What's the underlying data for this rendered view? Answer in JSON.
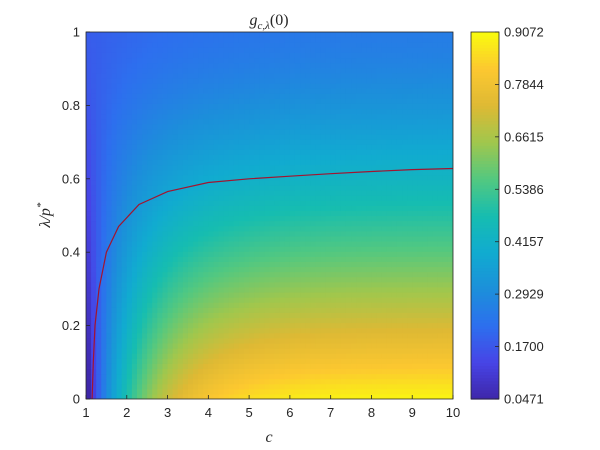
{
  "chart_data": {
    "type": "heatmap",
    "title": "g_{c,λ}(0)",
    "title_parts": {
      "base": "g",
      "sub": "c,λ",
      "arg": "(0)"
    },
    "xlabel": "c",
    "ylabel_parts": {
      "main": "λ/p",
      "sup": "*"
    },
    "xlim": [
      1,
      10
    ],
    "ylim": [
      0,
      1
    ],
    "x_ticks": [
      "1",
      "2",
      "3",
      "4",
      "5",
      "6",
      "7",
      "8",
      "9",
      "10"
    ],
    "y_ticks": [
      "0",
      "0.2",
      "0.4",
      "0.6",
      "0.8",
      "1"
    ],
    "colorbar": {
      "min": 0.0471,
      "max": 0.9072,
      "ticks": [
        "0.0471",
        "0.1700",
        "0.2929",
        "0.4157",
        "0.5386",
        "0.6615",
        "0.7844",
        "0.9072"
      ],
      "colormap": "parula"
    },
    "contour_curve": {
      "color": "#a2142f",
      "points": [
        [
          1.15,
          0.0
        ],
        [
          1.18,
          0.1
        ],
        [
          1.22,
          0.2
        ],
        [
          1.32,
          0.3
        ],
        [
          1.5,
          0.4
        ],
        [
          1.8,
          0.47
        ],
        [
          2.3,
          0.53
        ],
        [
          3.0,
          0.565
        ],
        [
          4.0,
          0.59
        ],
        [
          5.0,
          0.6
        ],
        [
          6.0,
          0.607
        ],
        [
          7.0,
          0.614
        ],
        [
          8.0,
          0.62
        ],
        [
          9.0,
          0.625
        ],
        [
          10.0,
          0.628
        ]
      ]
    },
    "grid": false
  }
}
